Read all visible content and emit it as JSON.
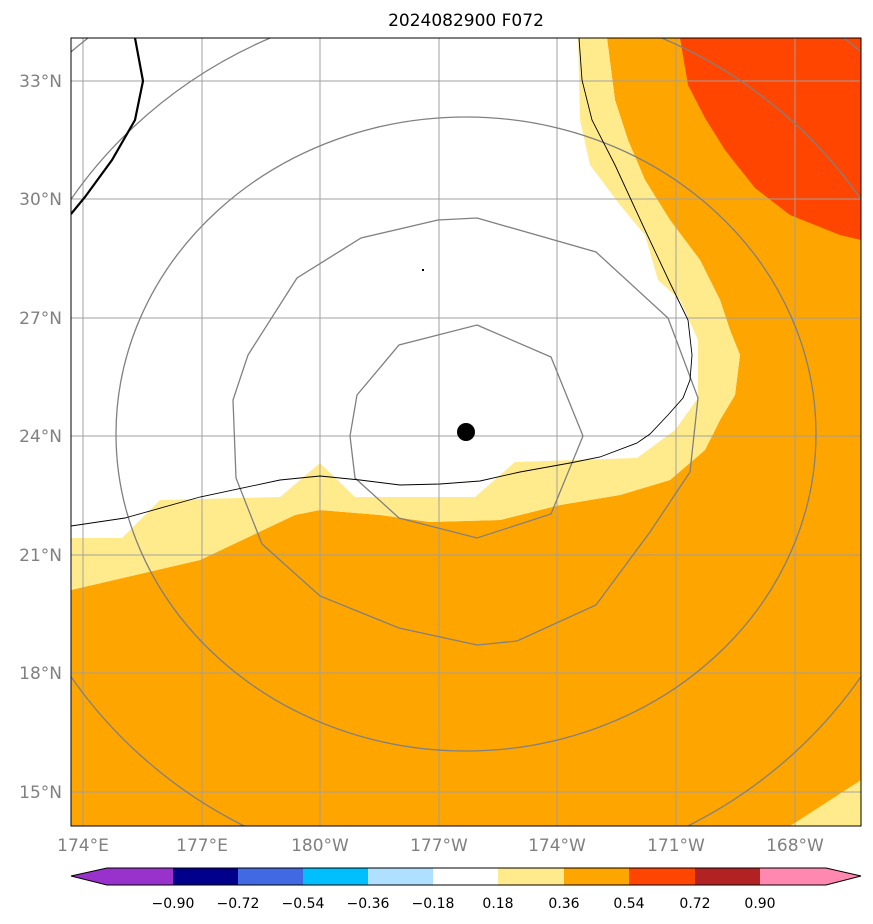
{
  "title": "2024082900 F072",
  "map": {
    "lat_labels": [
      "33°N",
      "30°N",
      "27°N",
      "24°N",
      "21°N",
      "18°N",
      "15°N"
    ],
    "lon_labels": [
      "174°E",
      "177°E",
      "180°W",
      "177°W",
      "174°W",
      "171°W",
      "168°W"
    ]
  },
  "colorbar": {
    "levels": [
      "−0.90",
      "−0.72",
      "−0.54",
      "−0.36",
      "−0.18",
      "0.18",
      "0.36",
      "0.54",
      "0.72",
      "0.90"
    ],
    "colors": [
      "#9932cc",
      "#00008b",
      "#4169e1",
      "#00bfff",
      "#b0e0ff",
      "#ffffff",
      "#ffeb8c",
      "#ffa500",
      "#ff4500",
      "#b22222",
      "#ff88b0"
    ]
  },
  "colors": {
    "field_0_18_0_36": "#ffeb8c",
    "field_0_36_0_54": "#ffa500",
    "field_0_54_0_72": "#ff4500",
    "contours": "#808080",
    "grid": "#a0a0a0"
  },
  "center_marker": "black-dot"
}
